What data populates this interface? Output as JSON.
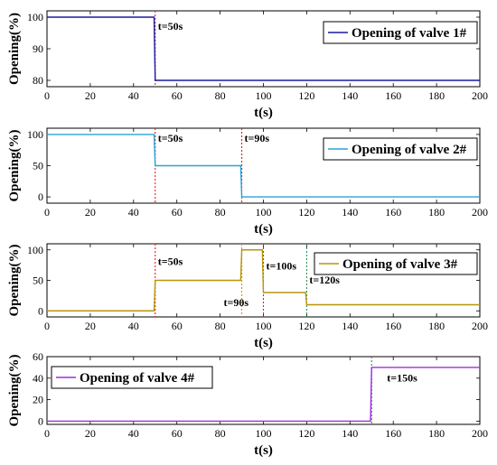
{
  "chart_data": [
    {
      "type": "line",
      "title": "",
      "xlabel": "t(s)",
      "ylabel": "Opening(%)",
      "xlim": [
        0,
        200
      ],
      "ylim": [
        78,
        102
      ],
      "xticks": [
        0,
        20,
        40,
        60,
        80,
        100,
        120,
        140,
        160,
        180,
        200
      ],
      "yticks": [
        80,
        90,
        100
      ],
      "grid": false,
      "legend_position": "top-right",
      "series": [
        {
          "name": "Opening of valve 1#",
          "color": "#1a1aa0",
          "x": [
            0,
            49.5,
            50,
            200
          ],
          "y": [
            100,
            100,
            80,
            80
          ]
        }
      ],
      "markers": [
        {
          "x": 50,
          "label": "t=50s",
          "color": "#e02020",
          "label_value": 96
        }
      ]
    },
    {
      "type": "line",
      "title": "",
      "xlabel": "t(s)",
      "ylabel": "Opening(%)",
      "xlim": [
        0,
        200
      ],
      "ylim": [
        -10,
        110
      ],
      "xticks": [
        0,
        20,
        40,
        60,
        80,
        100,
        120,
        140,
        160,
        180,
        200
      ],
      "yticks": [
        0,
        50,
        100
      ],
      "grid": false,
      "legend_position": "top-right",
      "series": [
        {
          "name": "Opening of valve 2#",
          "color": "#29a3d6",
          "x": [
            0,
            49.5,
            50,
            89.5,
            90,
            200
          ],
          "y": [
            100,
            100,
            50,
            50,
            0,
            0
          ]
        }
      ],
      "markers": [
        {
          "x": 50,
          "label": "t=50s",
          "color": "#e02020",
          "label_value": 88
        },
        {
          "x": 90,
          "label": "t=90s",
          "color": "#e02020",
          "label_value": 88
        }
      ]
    },
    {
      "type": "line",
      "title": "",
      "xlabel": "t(s)",
      "ylabel": "Opening(%)",
      "xlim": [
        0,
        200
      ],
      "ylim": [
        -10,
        110
      ],
      "xticks": [
        0,
        20,
        40,
        60,
        80,
        100,
        120,
        140,
        160,
        180,
        200
      ],
      "yticks": [
        0,
        50,
        100
      ],
      "grid": false,
      "legend_position": "top-right",
      "series": [
        {
          "name": "Opening of valve 3#",
          "color": "#b8960c",
          "x": [
            0,
            49.5,
            50,
            89.5,
            90,
            99.5,
            100,
            119.5,
            120,
            200
          ],
          "y": [
            0,
            0,
            50,
            50,
            100,
            100,
            30,
            30,
            10,
            10
          ]
        }
      ],
      "markers": [
        {
          "x": 50,
          "label": "t=50s",
          "color": "#e02020",
          "label_value": 75
        },
        {
          "x": 90,
          "label": "t=90s",
          "color": "#cc9900",
          "label_value": 8
        },
        {
          "x": 100,
          "label": "t=100s",
          "color": "#e02020",
          "label_value": 68
        },
        {
          "x": 120,
          "label": "t=120s",
          "color": "#2e8b57",
          "label_value": 45
        }
      ]
    },
    {
      "type": "line",
      "title": "",
      "xlabel": "t(s)",
      "ylabel": "Opening(%)",
      "xlim": [
        0,
        200
      ],
      "ylim": [
        -3,
        60
      ],
      "xticks": [
        0,
        20,
        40,
        60,
        80,
        100,
        120,
        140,
        160,
        180,
        200
      ],
      "yticks": [
        0,
        20,
        40,
        60
      ],
      "grid": false,
      "legend_position": "top-left",
      "series": [
        {
          "name": "Opening of valve 4#",
          "color": "#9b30d9",
          "x": [
            0,
            149.5,
            150,
            200
          ],
          "y": [
            0,
            0,
            50,
            50
          ]
        }
      ],
      "markers": [
        {
          "x": 150,
          "label": "t=150s",
          "color": "#2e8b57",
          "label_value": 37
        }
      ]
    }
  ]
}
